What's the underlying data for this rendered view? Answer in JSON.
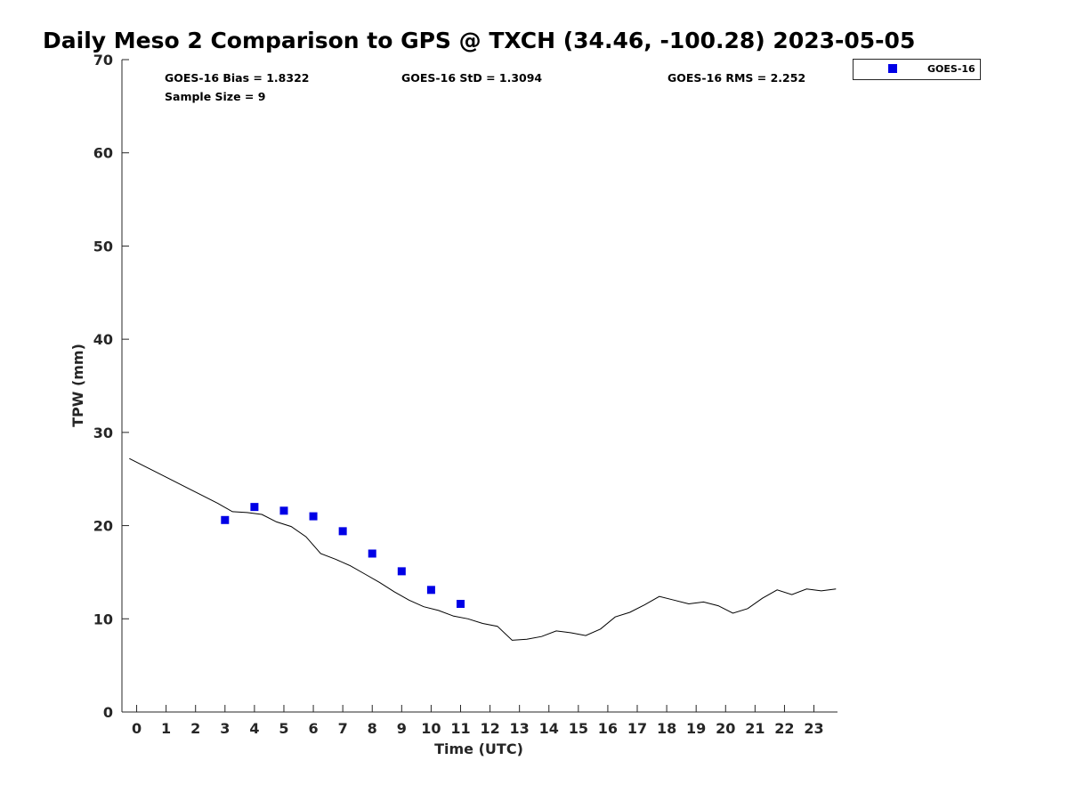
{
  "chart_data": {
    "type": "scatter",
    "title": "Daily Meso 2 Comparison to GPS @ TXCH (34.46, -100.28) 2023-05-05",
    "xlabel": "Time (UTC)",
    "ylabel": "TPW (mm)",
    "xlim": [
      -0.5,
      23.8
    ],
    "ylim": [
      0,
      70
    ],
    "x_ticks": [
      0,
      1,
      2,
      3,
      4,
      5,
      6,
      7,
      8,
      9,
      10,
      11,
      12,
      13,
      14,
      15,
      16,
      17,
      18,
      19,
      20,
      21,
      22,
      23
    ],
    "y_ticks": [
      0,
      10,
      20,
      30,
      40,
      50,
      60,
      70
    ],
    "grid": false,
    "legend_position": "top-right-outside",
    "stats": {
      "bias": "GOES-16 Bias = 1.8322",
      "std": "GOES-16 StD = 1.3094",
      "rms": "GOES-16 RMS = 2.252",
      "sample_size": "Sample Size = 9"
    },
    "series": [
      {
        "name": "GOES-16",
        "kind": "scatter",
        "marker": "square",
        "color": "#0000e6",
        "x": [
          3,
          4,
          5,
          6,
          7,
          8,
          9,
          10,
          11
        ],
        "y": [
          20.6,
          22.0,
          21.6,
          21.0,
          19.4,
          17.0,
          15.1,
          13.1,
          11.6
        ]
      },
      {
        "kind": "line",
        "color": "#000000",
        "x": [
          -0.25,
          0.25,
          0.75,
          1.25,
          1.75,
          2.25,
          2.75,
          3.25,
          3.75,
          4.25,
          4.75,
          5.25,
          5.75,
          6.25,
          6.75,
          7.25,
          7.75,
          8.25,
          8.75,
          9.25,
          9.75,
          10.25,
          10.75,
          11.25,
          11.75,
          12.25,
          12.75,
          13.25,
          13.75,
          14.25,
          14.75,
          15.25,
          15.75,
          16.25,
          16.75,
          17.25,
          17.75,
          18.25,
          18.75,
          19.25,
          19.75,
          20.25,
          20.75,
          21.25,
          21.75,
          22.25,
          22.75,
          23.25,
          23.75
        ],
        "y": [
          27.2,
          26.4,
          25.6,
          24.8,
          24.0,
          23.2,
          22.4,
          21.5,
          21.4,
          21.2,
          20.4,
          19.9,
          18.8,
          17.0,
          16.4,
          15.7,
          14.8,
          13.9,
          12.9,
          12.0,
          11.3,
          10.9,
          10.3,
          10.0,
          9.5,
          9.2,
          7.7,
          7.8,
          8.1,
          8.7,
          8.5,
          8.2,
          8.9,
          10.2,
          10.7,
          11.5,
          12.4,
          12.0,
          11.6,
          11.8,
          11.4,
          10.6,
          11.1,
          12.2,
          13.1,
          12.6,
          13.2,
          13.0,
          13.2
        ]
      }
    ]
  }
}
